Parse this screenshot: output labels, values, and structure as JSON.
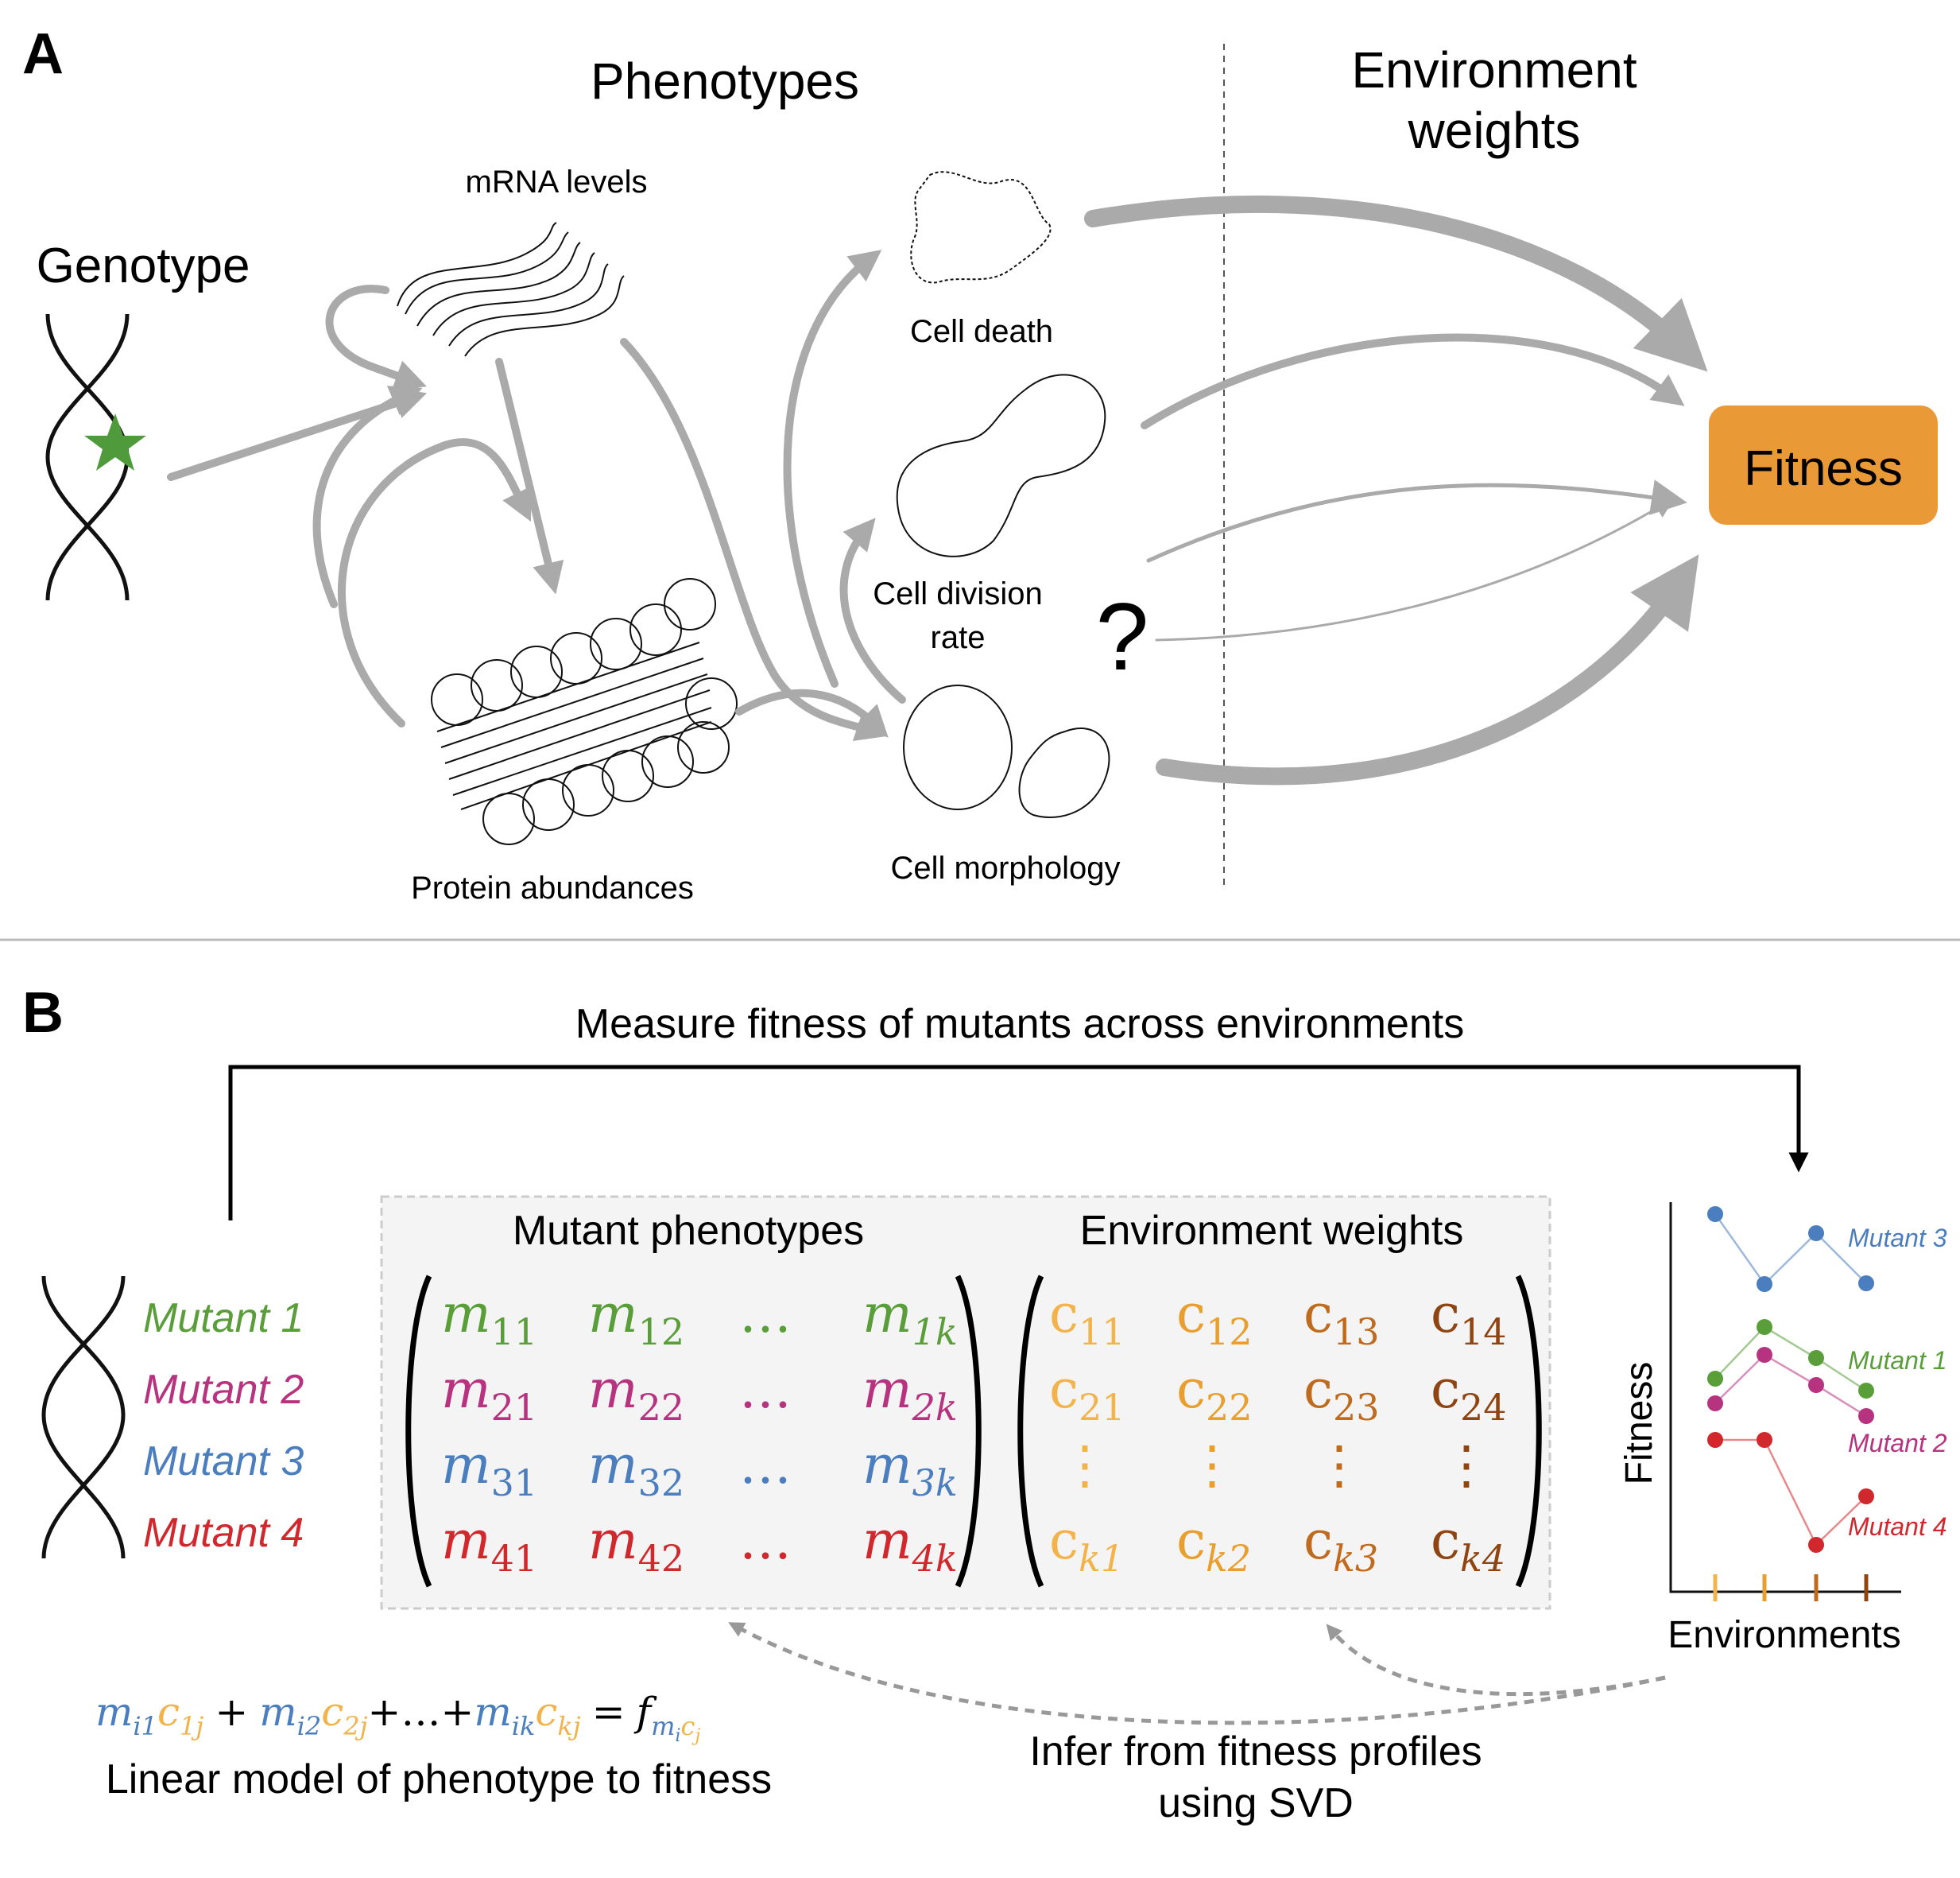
{
  "panel_a": {
    "letter": "A",
    "phenotypes_title": "Phenotypes",
    "env_weights_title_line1": "Environment",
    "env_weights_title_line2": "weights",
    "genotype_label": "Genotype",
    "mrna_label": "mRNA levels",
    "protein_label": "Protein abundances",
    "cell_death_label": "Cell death",
    "cell_division_line1": "Cell division",
    "cell_division_line2": "rate",
    "cell_morphology_label": "Cell morphology",
    "unknown_mark": "?",
    "fitness_label": "Fitness"
  },
  "panel_b": {
    "letter": "B",
    "measure_label": "Measure fitness of mutants across environments",
    "mutants": [
      "Mutant 1",
      "Mutant 2",
      "Mutant 3",
      "Mutant 4"
    ],
    "mutant_phenotypes_title": "Mutant phenotypes",
    "environment_weights_title": "Environment weights",
    "m_matrix": [
      [
        "m",
        "11",
        "m",
        "12",
        "…",
        "",
        "m",
        "1k"
      ],
      [
        "m",
        "21",
        "m",
        "22",
        "…",
        "",
        "m",
        "2k"
      ],
      [
        "m",
        "31",
        "m",
        "32",
        "…",
        "",
        "m",
        "3k"
      ],
      [
        "m",
        "41",
        "m",
        "42",
        "…",
        "",
        "m",
        "4k"
      ]
    ],
    "c_matrix": [
      [
        "11",
        "12",
        "13",
        "14"
      ],
      [
        "21",
        "22",
        "23",
        "24"
      ],
      [
        "⋮",
        "⋮",
        "⋮",
        "⋮"
      ],
      [
        "k1",
        "k2",
        "k3",
        "k4"
      ]
    ],
    "c_letter": "c",
    "linear_model_caption": "Linear model of phenotype to fitness",
    "infer_line1": "Infer from fitness profiles",
    "infer_line2": "using SVD",
    "equation": {
      "m": "m",
      "c": "c",
      "f": "f",
      "sub_i1": "i1",
      "sub_1j": "1j",
      "sub_i2": "i2",
      "sub_2j": "2j",
      "sub_ik": "ik",
      "sub_kj": "kj",
      "sub_mi": "m",
      "sub_i": "i",
      "sub_cj": "c",
      "sub_j": "j",
      "plus": "+",
      "dots": "…",
      "equals": "="
    },
    "plot": {
      "ylabel": "Fitness",
      "xlabel": "Environments",
      "series_labels": [
        "Mutant 3",
        "Mutant 1",
        "Mutant 2",
        "Mutant 4"
      ]
    }
  },
  "colors": {
    "mutant1": "#5a9e3a",
    "mutant2": "#b8337f",
    "mutant3": "#4a7ebf",
    "mutant4": "#d0282c",
    "env1": "#f2b34a",
    "env2": "#e89f2e",
    "env3": "#c06a1e",
    "env4": "#8e4512",
    "fitness_box": "#e99a37",
    "arrow_gray": "#aaaaaa",
    "star": "#4f9a3a"
  }
}
